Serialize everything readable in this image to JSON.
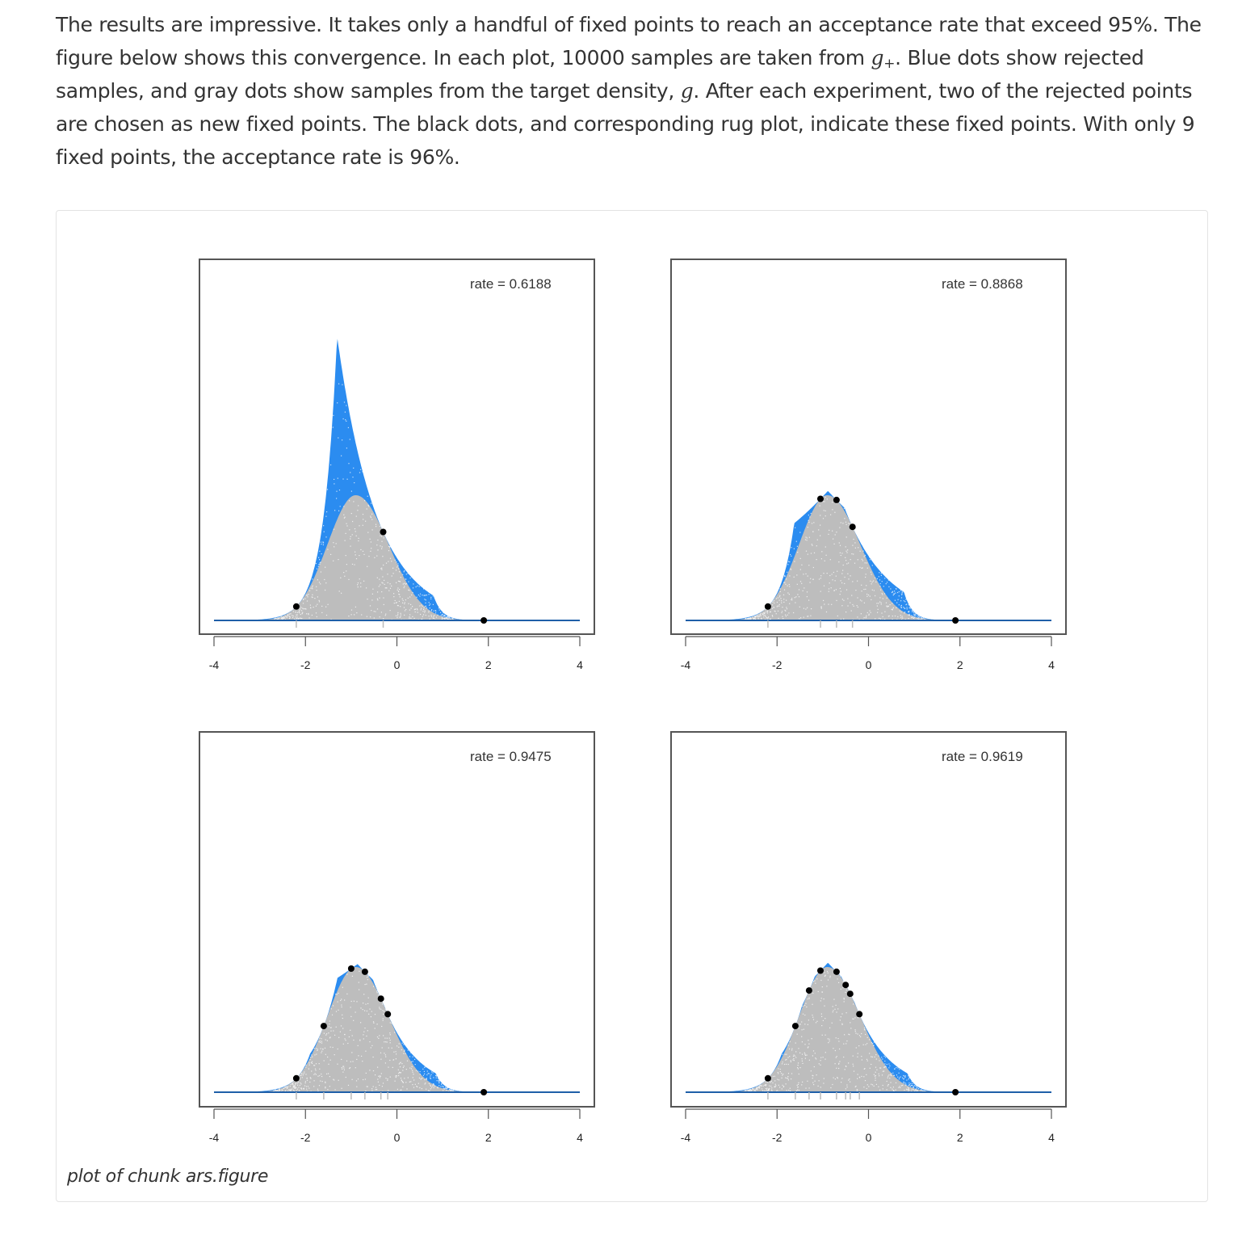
{
  "text": {
    "p1": "The results are impressive. It takes only a handful of fixed points to reach an acceptance rate that exceed 95%. The figure below shows this convergence. In each plot, 10000 samples are taken from ",
    "g_plus_base": "g",
    "g_plus_sub": "+",
    "p2": ". Blue dots show rejected samples, and gray dots show samples from the target density, ",
    "g": "g",
    "p3": ". After each experiment, two of the rejected points are chosen as new fixed points. The black dots, and corresponding rug plot, indicate these fixed points. With only 9 fixed points, the acceptance rate is 96%."
  },
  "caption": "plot of chunk ars.figure",
  "colors": {
    "rejected": "#2b8cf0",
    "accepted": "#bdbdbd",
    "fixed_point": "#000000",
    "axis": "#555555",
    "envelope_line": "#1f5fa8"
  },
  "chart_data": [
    {
      "type": "area",
      "annotation": "rate = 0.6188",
      "xlim": [
        -4,
        4
      ],
      "x_ticks": [
        -4,
        -2,
        0,
        2,
        4
      ],
      "fixed_points": [
        -2.2,
        -0.3,
        1.9
      ],
      "rug": [
        -2.2,
        -0.3
      ]
    },
    {
      "type": "area",
      "annotation": "rate = 0.8868",
      "xlim": [
        -4,
        4
      ],
      "x_ticks": [
        -4,
        -2,
        0,
        2,
        4
      ],
      "fixed_points": [
        -2.2,
        -1.05,
        -0.7,
        -0.35,
        1.9
      ],
      "rug": [
        -2.2,
        -1.05,
        -0.7,
        -0.35
      ]
    },
    {
      "type": "area",
      "annotation": "rate = 0.9475",
      "xlim": [
        -4,
        4
      ],
      "x_ticks": [
        -4,
        -2,
        0,
        2,
        4
      ],
      "fixed_points": [
        -2.2,
        -1.6,
        -1.0,
        -0.7,
        -0.35,
        -0.2,
        1.9
      ],
      "rug": [
        -2.2,
        -1.6,
        -1.0,
        -0.7,
        -0.35,
        -0.2
      ]
    },
    {
      "type": "area",
      "annotation": "rate = 0.9619",
      "xlim": [
        -4,
        4
      ],
      "x_ticks": [
        -4,
        -2,
        0,
        2,
        4
      ],
      "fixed_points": [
        -2.2,
        -1.6,
        -1.3,
        -1.05,
        -0.7,
        -0.5,
        -0.4,
        -0.2,
        1.9
      ],
      "rug": [
        -2.2,
        -1.6,
        -1.3,
        -1.05,
        -0.7,
        -0.5,
        -0.4,
        -0.2
      ]
    }
  ]
}
